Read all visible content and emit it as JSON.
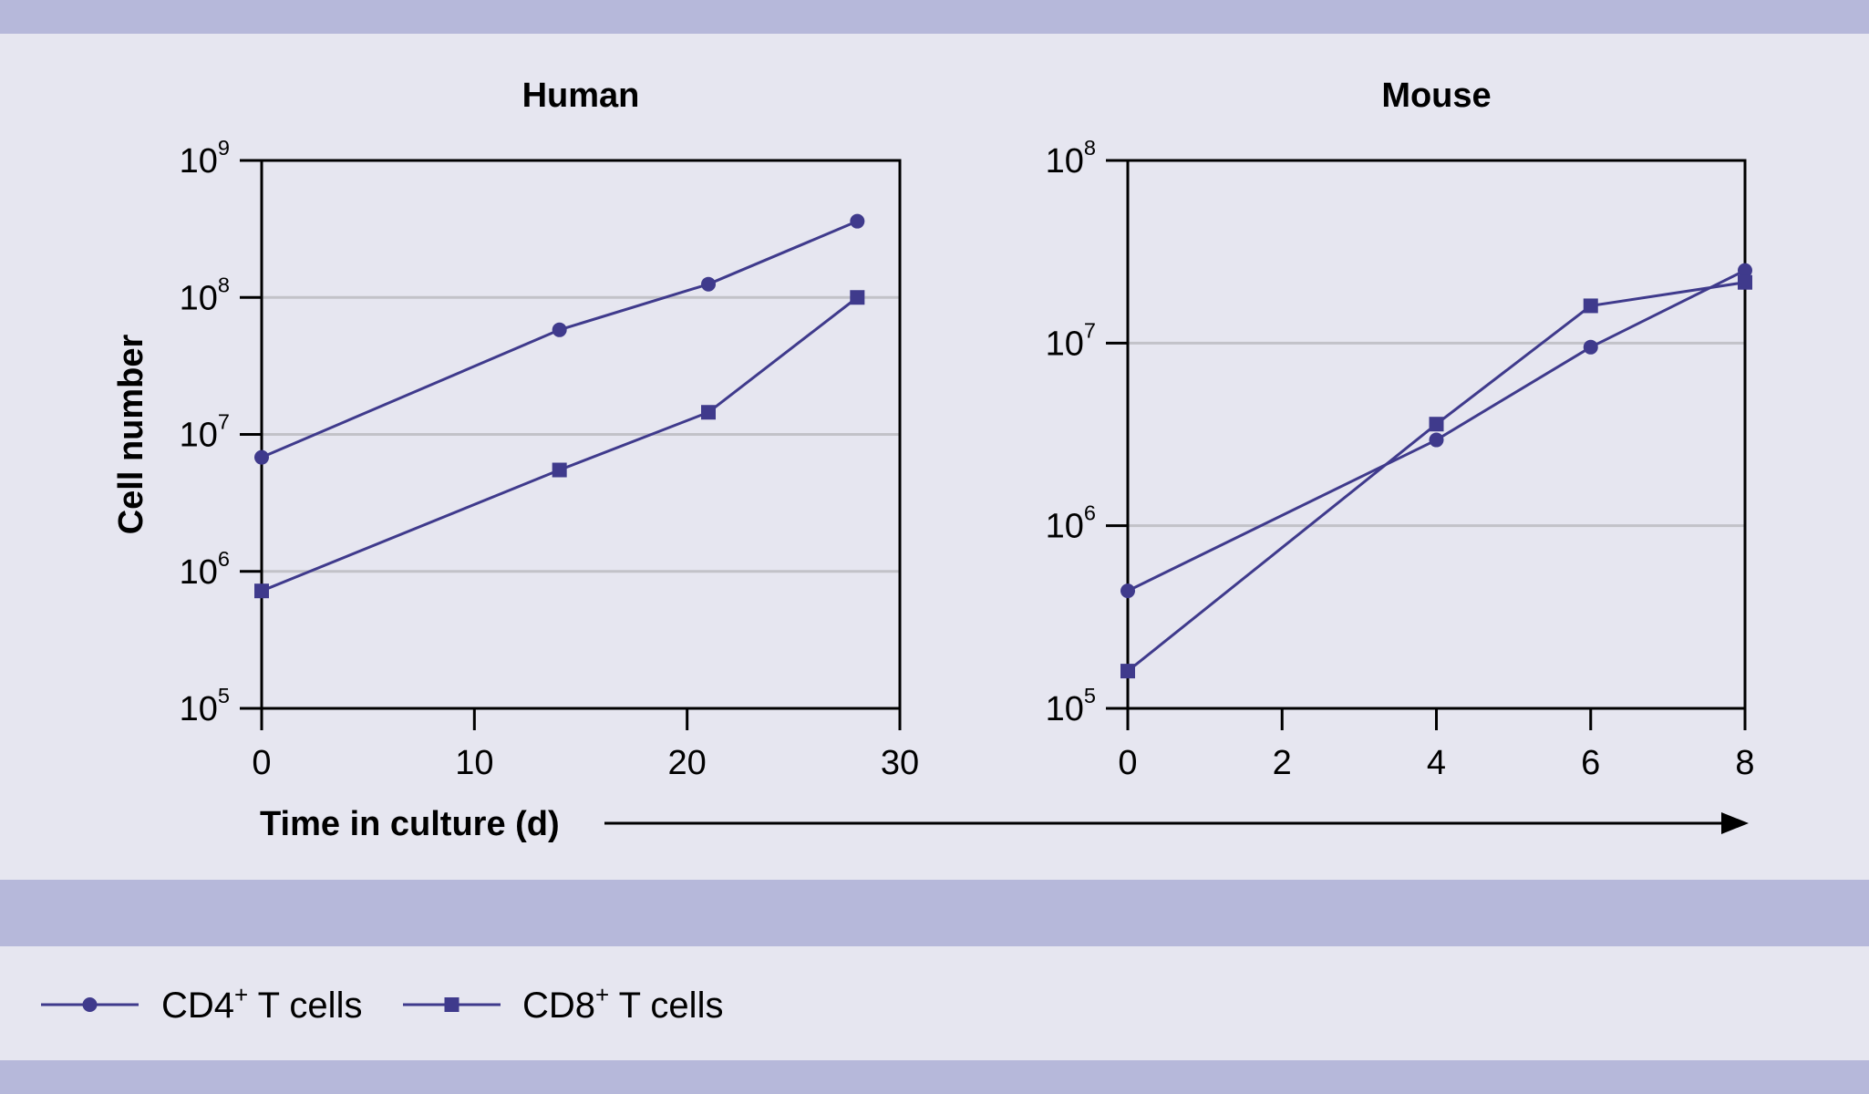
{
  "colors": {
    "background": "#e6e6f0",
    "band": "#b6b8da",
    "series": "#3f3a8c",
    "gridline": "#c2c2c8",
    "axis": "#000000"
  },
  "icons": {
    "circle_marker": "circle-marker-icon",
    "square_marker": "square-marker-icon",
    "time_arrow": "arrow-right-icon"
  },
  "xaxis_label": "Time in culture (d)",
  "legend": [
    {
      "marker": "circle",
      "prefix": "CD4",
      "sup": "+",
      "suffix": " T cells"
    },
    {
      "marker": "square",
      "prefix": "CD8",
      "sup": "+",
      "suffix": " T cells"
    }
  ],
  "chart_data": [
    {
      "type": "line",
      "title": "Human",
      "ylabel": "Cell number",
      "xlabel": "Time in culture (d)",
      "yscale": "log",
      "xlim": [
        0,
        30
      ],
      "ylim": [
        100000,
        1000000000
      ],
      "xticks": [
        "0",
        "10",
        "20",
        "30"
      ],
      "yticks": [
        {
          "base": "10",
          "exp": "5"
        },
        {
          "base": "10",
          "exp": "6"
        },
        {
          "base": "10",
          "exp": "7"
        },
        {
          "base": "10",
          "exp": "8"
        },
        {
          "base": "10",
          "exp": "9"
        }
      ],
      "grid": "horizontal",
      "series": [
        {
          "name": "CD4+ T cells",
          "marker": "circle",
          "x": [
            0,
            14,
            21,
            28
          ],
          "y": [
            6800000,
            58000000,
            125000000,
            360000000
          ]
        },
        {
          "name": "CD8+ T cells",
          "marker": "square",
          "x": [
            0,
            14,
            21,
            28
          ],
          "y": [
            720000,
            5500000,
            14500000,
            100000000
          ]
        }
      ]
    },
    {
      "type": "line",
      "title": "Mouse",
      "ylabel": "",
      "xlabel": "Time in culture (d)",
      "yscale": "log",
      "xlim": [
        0,
        8
      ],
      "ylim": [
        100000,
        100000000
      ],
      "xticks": [
        "0",
        "2",
        "4",
        "6",
        "8"
      ],
      "yticks": [
        {
          "base": "10",
          "exp": "5"
        },
        {
          "base": "10",
          "exp": "6"
        },
        {
          "base": "10",
          "exp": "7"
        },
        {
          "base": "10",
          "exp": "8"
        }
      ],
      "grid": "horizontal",
      "series": [
        {
          "name": "CD4+ T cells",
          "marker": "circle",
          "x": [
            0,
            4,
            6,
            8
          ],
          "y": [
            440000,
            2950000,
            9500000,
            25000000
          ]
        },
        {
          "name": "CD8+ T cells",
          "marker": "square",
          "x": [
            0,
            4,
            6,
            8
          ],
          "y": [
            160000,
            3600000,
            16000000,
            21500000
          ]
        }
      ]
    }
  ]
}
